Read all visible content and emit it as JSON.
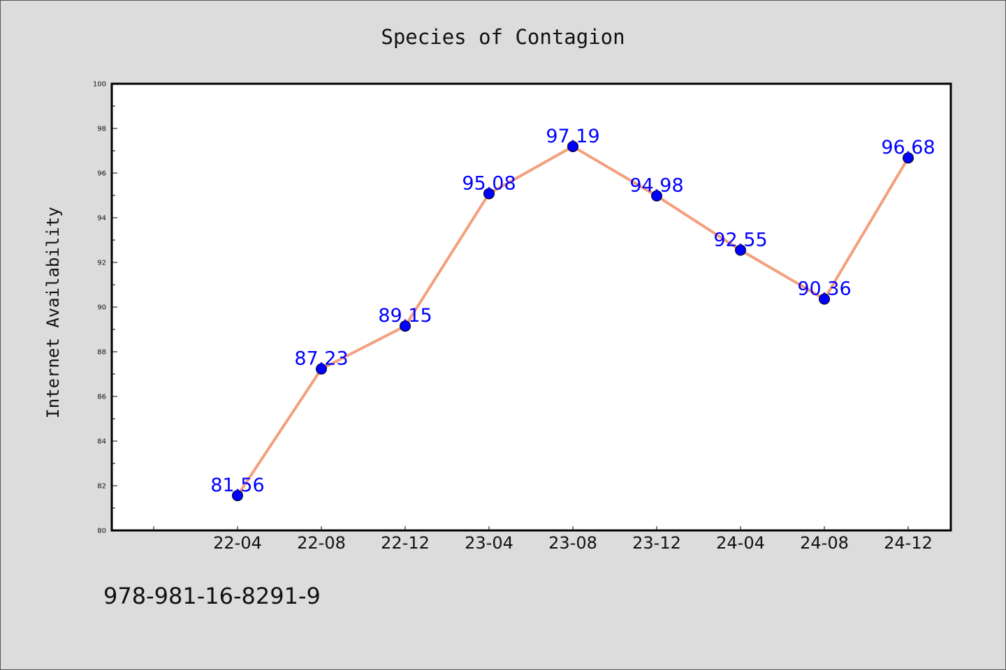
{
  "chart_data": {
    "type": "line",
    "title": "Species of Contagion",
    "xlabel": "",
    "ylabel": "Internet Availability",
    "categories": [
      "22-04",
      "22-08",
      "22-12",
      "23-04",
      "23-08",
      "23-12",
      "24-04",
      "24-08",
      "24-12"
    ],
    "series": [
      {
        "values": [
          81.56,
          87.23,
          89.15,
          95.08,
          97.19,
          94.98,
          92.55,
          90.36,
          96.68
        ],
        "data_labels": [
          "81.56",
          "87.23",
          "89.15",
          "95.08",
          "97.19",
          "94.98",
          "92.55",
          "90.36",
          "96.68"
        ],
        "line_color": "#f4a07e",
        "marker_color": "#0000ff"
      }
    ],
    "ylim": [
      80,
      100
    ],
    "yticks": [
      "80",
      "82",
      "84",
      "86",
      "88",
      "90",
      "92",
      "94",
      "96",
      "98",
      "100"
    ],
    "grid": false,
    "legend": "none"
  },
  "footer": {
    "text": "978-981-16-8291-9"
  },
  "colors": {
    "background": "#dcdcdc",
    "plot_area": "#ffffff",
    "axis": "#000000"
  }
}
